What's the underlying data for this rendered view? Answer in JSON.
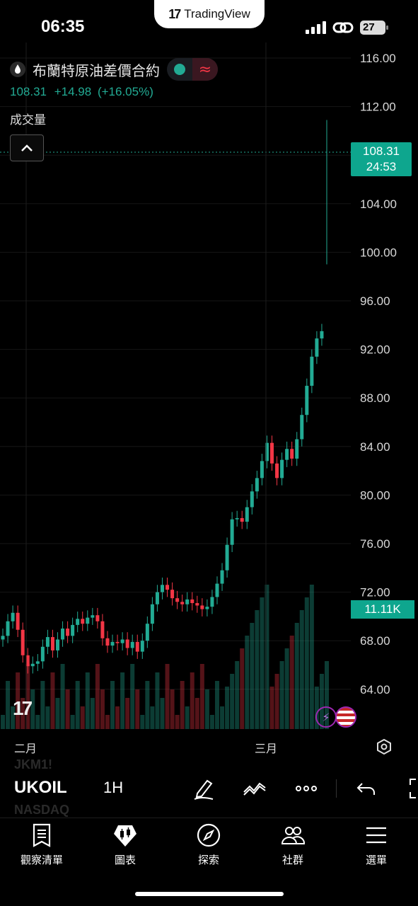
{
  "status_bar": {
    "time": "06:35",
    "battery": "27"
  },
  "top_pill": {
    "logo": "17",
    "brand": "TradingView"
  },
  "instrument": {
    "name": "布蘭特原油差價合約",
    "price": "108.31",
    "change": "+14.98",
    "change_pct": "(+16.05%)",
    "volume_label": "成交量"
  },
  "price_axis": {
    "labels": [
      "116.00",
      "112.00",
      "108.00",
      "104.00",
      "100.00",
      "96.00",
      "92.00",
      "88.00",
      "84.00",
      "80.00",
      "76.00",
      "72.00",
      "68.00",
      "64.00"
    ],
    "last_price_label": "108.31",
    "countdown": "24:53",
    "volume_tag": "11.11K"
  },
  "time_axis": {
    "labels": [
      "二月",
      "三月"
    ]
  },
  "chart_data": {
    "type": "candlestick",
    "ylim": [
      61,
      117
    ],
    "series": [
      {
        "name": "",
        "values": [
          68.4,
          69.6,
          70.3,
          68.9,
          66.8,
          65.9,
          66.1,
          66.3,
          67.5,
          68.3,
          67.2,
          68.1,
          69.0,
          68.4,
          69.3,
          69.8,
          69.4,
          69.9,
          70.1,
          69.6,
          68.2,
          67.6,
          67.9,
          67.8,
          68.1,
          67.4,
          67.9,
          67.1,
          68.0,
          69.4,
          71.0,
          72.0,
          72.6,
          72.2,
          71.5,
          71.2,
          71.0,
          71.4,
          71.1,
          70.9,
          70.6,
          70.8,
          71.6,
          72.7,
          73.8,
          75.9,
          78.0,
          78.1,
          77.8,
          79.0,
          80.3,
          81.4,
          82.8,
          84.3,
          82.6,
          81.4,
          82.9,
          83.8,
          83.0,
          84.6,
          86.6,
          89.0,
          91.4,
          92.9,
          93.5,
          108.31
        ]
      }
    ],
    "volume_last": "11.11K"
  },
  "toolbar": {
    "ghost_above": "JKM1!",
    "symbol": "UKOIL",
    "interval": "1H",
    "ghost_below": "NASDAQ"
  },
  "nav": [
    {
      "label": "觀察清單",
      "icon": "watchlist-icon"
    },
    {
      "label": "圖表",
      "icon": "chart-icon"
    },
    {
      "label": "探索",
      "icon": "compass-icon"
    },
    {
      "label": "社群",
      "icon": "community-icon"
    },
    {
      "label": "選單",
      "icon": "menu-icon"
    }
  ],
  "colors": {
    "up": "#22ab94",
    "down": "#f23645",
    "accent": "#0ea68e"
  }
}
